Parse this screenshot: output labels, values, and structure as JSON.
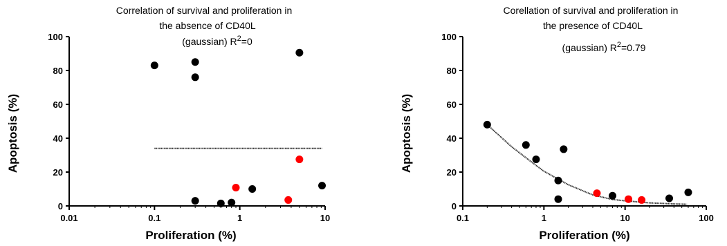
{
  "chart_data": [
    {
      "type": "scatter",
      "title_lines": [
        "Correlation of survival and proliferation in",
        "the absence of CD40L",
        "(gaussian) R",
        "2",
        "=0"
      ],
      "xlabel": "Proliferation (%)",
      "ylabel": "Apoptosis (%)",
      "xscale": "log",
      "xlim": [
        0.01,
        10
      ],
      "ylim": [
        0,
        100
      ],
      "xticks": [
        0.01,
        0.1,
        1,
        10
      ],
      "xtick_labels": [
        "0.01",
        "0.1",
        "1",
        "10"
      ],
      "yticks": [
        0,
        20,
        40,
        60,
        80,
        100
      ],
      "ytick_labels": [
        "0",
        "20",
        "40",
        "60",
        "80",
        "100"
      ],
      "series": [
        {
          "color": "#000000",
          "points": [
            [
              0.1,
              83
            ],
            [
              0.3,
              85
            ],
            [
              0.3,
              76
            ],
            [
              0.3,
              3
            ],
            [
              0.6,
              1.5
            ],
            [
              0.8,
              2
            ],
            [
              1.4,
              10
            ],
            [
              5,
              90.5
            ],
            [
              9.2,
              12
            ]
          ]
        },
        {
          "color": "#ff0000",
          "points": [
            [
              0.9,
              10.8
            ],
            [
              3.7,
              3.5
            ],
            [
              5,
              27.5
            ]
          ]
        }
      ],
      "fit": {
        "type": "gaussian",
        "points": [
          [
            0.1,
            34
          ],
          [
            9.2,
            34
          ]
        ]
      }
    },
    {
      "type": "scatter",
      "title_lines": [
        "Corellation of survival and proliferation in",
        "the presence of CD40L",
        "(gaussian) R",
        "2",
        "=0.79"
      ],
      "xlabel": "Proliferation (%)",
      "ylabel": "Apoptosis (%)",
      "xscale": "log",
      "xlim": [
        0.1,
        100
      ],
      "ylim": [
        0,
        100
      ],
      "xticks": [
        0.1,
        1,
        10,
        100
      ],
      "xtick_labels": [
        "0.1",
        "1",
        "10",
        "100"
      ],
      "yticks": [
        0,
        20,
        40,
        60,
        80,
        100
      ],
      "ytick_labels": [
        "0",
        "20",
        "40",
        "60",
        "80",
        "100"
      ],
      "series": [
        {
          "color": "#000000",
          "points": [
            [
              0.2,
              48
            ],
            [
              0.6,
              36
            ],
            [
              0.8,
              27.5
            ],
            [
              1.5,
              15
            ],
            [
              1.5,
              4
            ],
            [
              1.75,
              33.5
            ],
            [
              7,
              6
            ],
            [
              35,
              4.5
            ],
            [
              60,
              8
            ]
          ]
        },
        {
          "color": "#ff0000",
          "points": [
            [
              4.5,
              7.5
            ],
            [
              11,
              4
            ],
            [
              16,
              3.5
            ]
          ]
        }
      ],
      "fit": {
        "type": "gaussian",
        "points": [
          [
            0.2,
            48
          ],
          [
            0.4,
            35
          ],
          [
            0.7,
            26
          ],
          [
            1,
            20.5
          ],
          [
            2,
            12.5
          ],
          [
            4,
            6.5
          ],
          [
            7,
            3.8
          ],
          [
            10,
            3
          ],
          [
            20,
            1.8
          ],
          [
            40,
            1.2
          ],
          [
            58,
            1
          ]
        ]
      }
    }
  ]
}
